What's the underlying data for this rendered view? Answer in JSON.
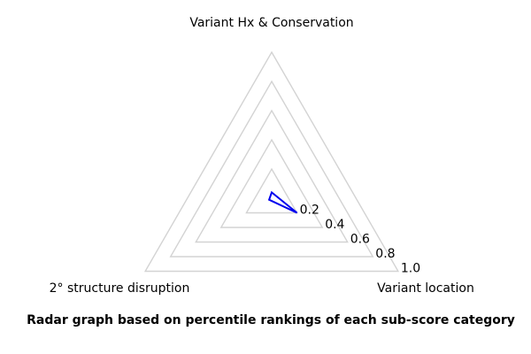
{
  "chart_data": {
    "type": "radar",
    "categories": [
      "Variant Hx & Conservation",
      "Variant location",
      "2° structure disruption"
    ],
    "series": [
      {
        "name": "percentile rankings",
        "values": [
          0.04,
          0.2,
          0.02
        ]
      }
    ],
    "values": [
      0.04,
      0.2,
      0.02
    ],
    "tick_values": [
      0.2,
      0.4,
      0.6,
      0.8,
      1.0
    ],
    "tick_labels": [
      "0.2",
      "0.4",
      "0.6",
      "0.8",
      "1.0"
    ],
    "rlim": [
      0,
      1.0
    ],
    "grid": "triangular, concentric",
    "legend": "none",
    "grid_color": "#d3d3d3",
    "line_color": "#0000ee",
    "text_color": "#000000",
    "caption": "Radar graph based on percentile rankings of each sub-score category"
  }
}
